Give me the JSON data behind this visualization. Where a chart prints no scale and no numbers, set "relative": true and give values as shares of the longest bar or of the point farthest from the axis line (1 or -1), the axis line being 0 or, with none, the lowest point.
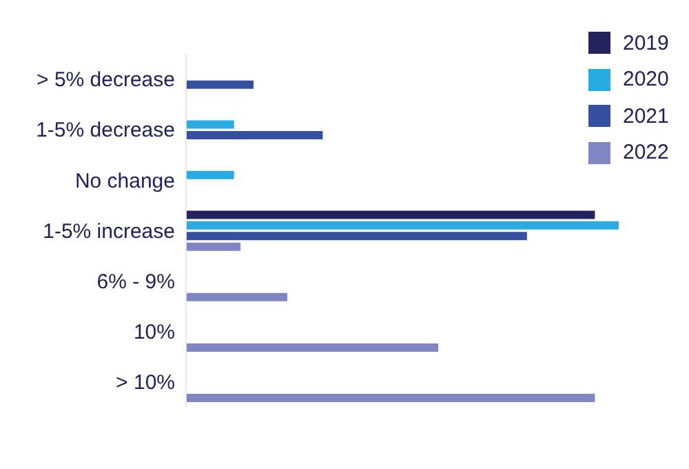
{
  "chart_data": {
    "type": "bar",
    "orientation": "horizontal",
    "relative": true,
    "legend": "top right",
    "categories": [
      "> 5% decrease",
      "1-5% decrease",
      "No change",
      "1-5% increase",
      "6% - 9%",
      "10%",
      "> 10%"
    ],
    "series": [
      {
        "name": "2019",
        "color": "#23235e",
        "values": [
          null,
          null,
          null,
          0.945,
          null,
          null,
          null
        ]
      },
      {
        "name": "2020",
        "color": "#29abe2",
        "values": [
          null,
          0.111,
          0.111,
          1,
          null,
          null,
          null
        ]
      },
      {
        "name": "2021",
        "color": "#34509f",
        "values": [
          0.156,
          0.316,
          null,
          0.788,
          null,
          null,
          null
        ]
      },
      {
        "name": "2022",
        "color": "#7f86c2",
        "values": [
          null,
          null,
          null,
          0.126,
          0.234,
          0.583,
          0.945
        ]
      }
    ]
  }
}
